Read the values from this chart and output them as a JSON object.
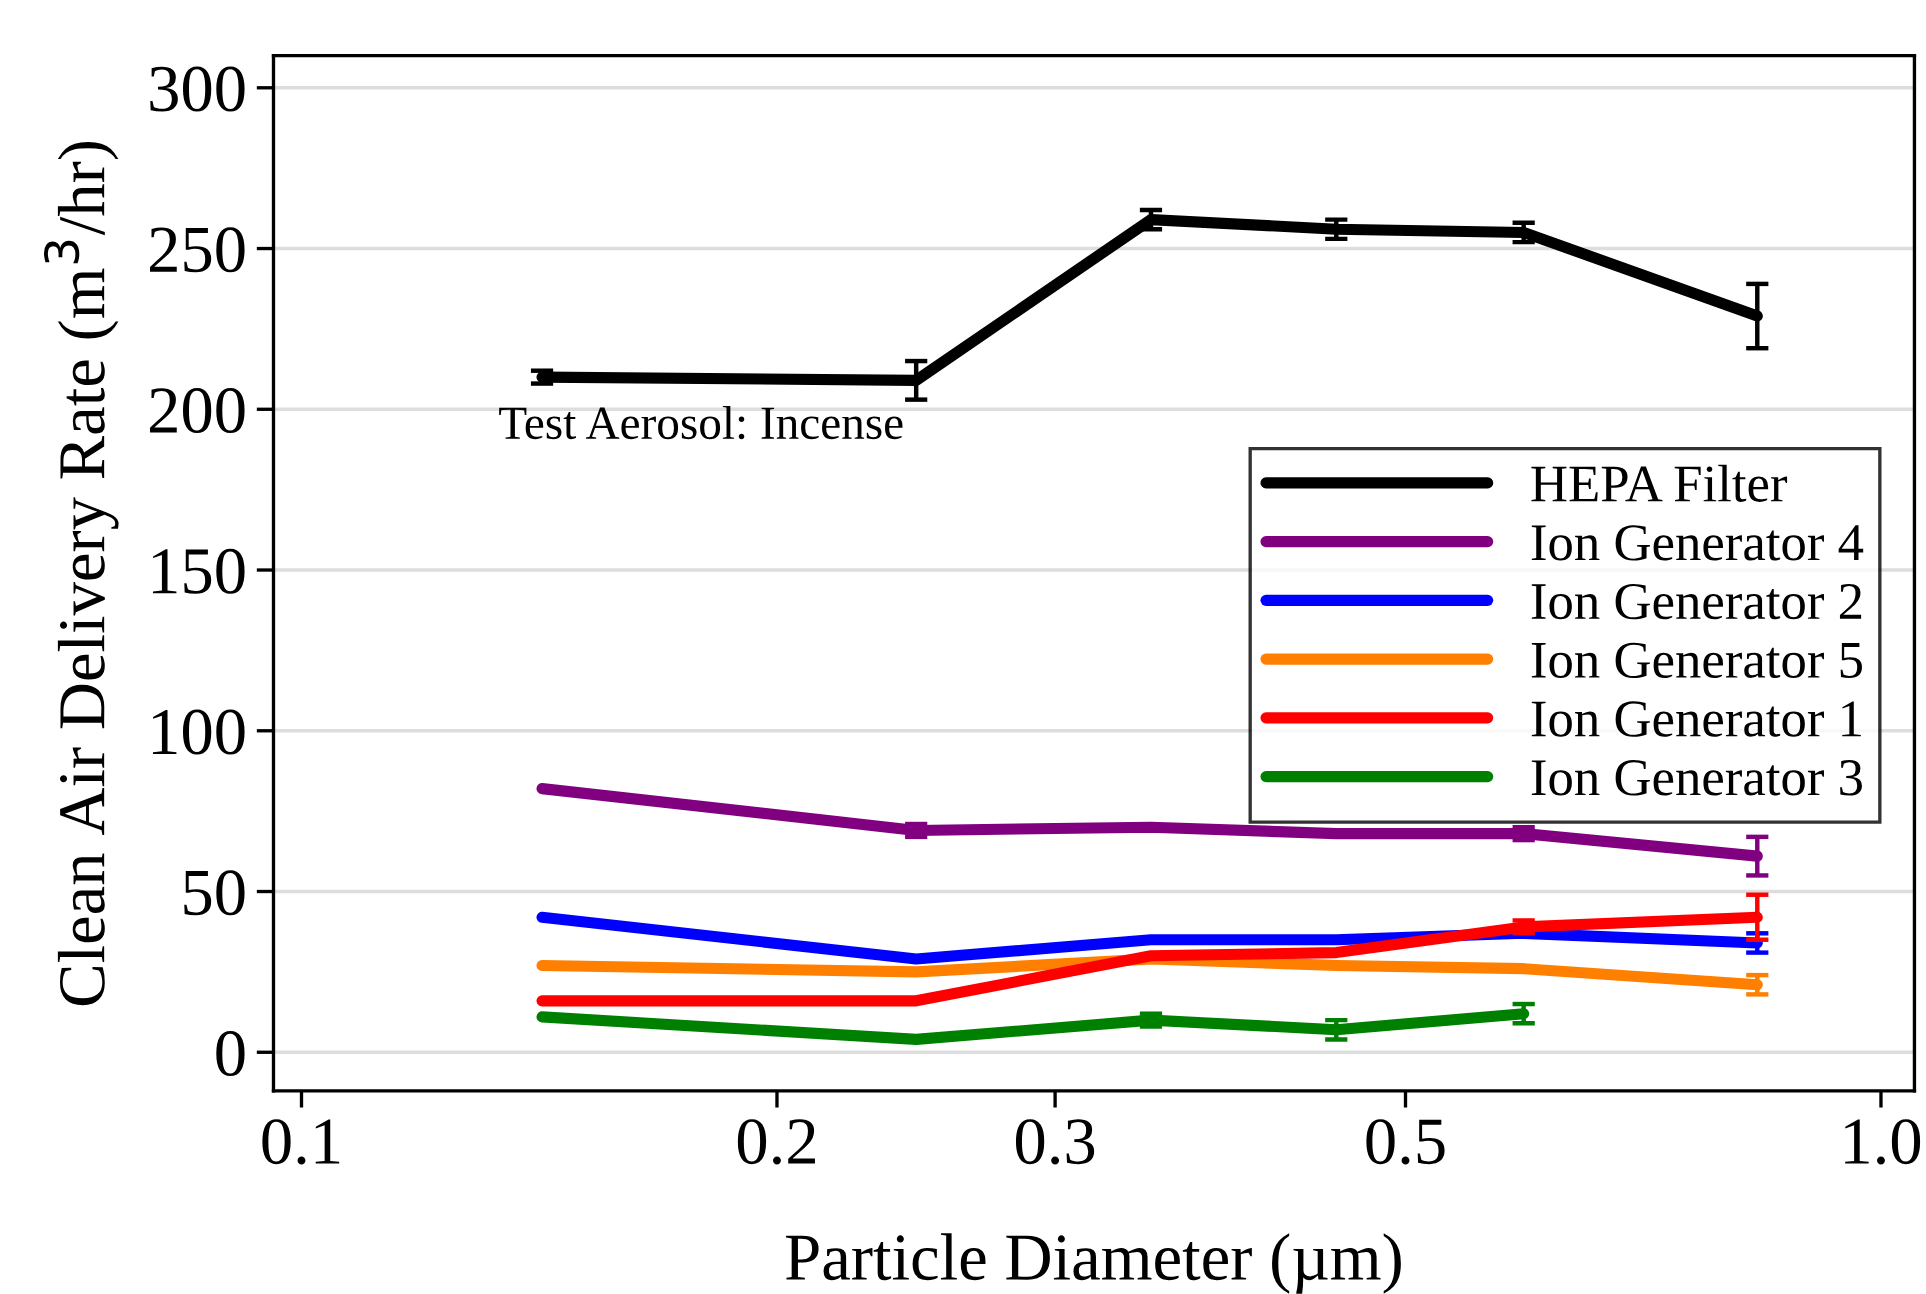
{
  "chart_data": {
    "type": "line",
    "xlabel": "Particle Diameter (µm)",
    "ylabel": "Clean Air Delivery Rate (m$^{3}$/hr)",
    "log": "x",
    "xlim": [
      0.096,
      1.05
    ],
    "xticks": [
      0.1,
      0.2,
      0.3,
      0.5,
      {
        "value": 1.0,
        "label": "1.0"
      }
    ],
    "ylim": [
      -12,
      310
    ],
    "yticks": [
      0,
      50,
      100,
      150,
      200,
      250,
      300
    ],
    "grid": "y",
    "legend": "right",
    "marker": "none",
    "line_style": "solid",
    "x": [
      0.142,
      0.245,
      0.345,
      0.452,
      0.594,
      0.835
    ],
    "annotations": [
      "Test Aerosol: Incense"
    ],
    "series": [
      {
        "name": "HEPA Filter",
        "color": "#000000",
        "values": [
          210,
          209,
          259,
          256,
          255,
          229
        ],
        "errors": [
          2,
          6,
          3,
          3,
          3,
          10
        ]
      },
      {
        "name": "Ion Generator 4",
        "color": "#800080",
        "values": [
          82,
          69,
          70,
          68,
          68,
          61
        ],
        "errors": [
          null,
          2,
          null,
          null,
          2,
          6
        ]
      },
      {
        "name": "Ion Generator 2",
        "color": "#0000ff",
        "values": [
          42,
          29,
          35,
          35,
          37,
          34
        ],
        "errors": [
          null,
          null,
          null,
          null,
          null,
          3
        ]
      },
      {
        "name": "Ion Generator 5",
        "color": "#ff8000",
        "values": [
          27,
          25,
          29,
          27,
          26,
          21
        ],
        "errors": [
          null,
          null,
          null,
          null,
          null,
          3
        ]
      },
      {
        "name": "Ion Generator 1",
        "color": "#ff0000",
        "values": [
          16,
          16,
          30,
          31,
          39,
          42
        ],
        "errors": [
          null,
          null,
          null,
          null,
          2,
          7
        ]
      },
      {
        "name": "Ion Generator 3",
        "color": "#008000",
        "values": [
          11,
          4,
          10,
          7,
          12,
          null
        ],
        "errors": [
          null,
          null,
          2,
          3,
          3,
          null
        ]
      }
    ]
  }
}
